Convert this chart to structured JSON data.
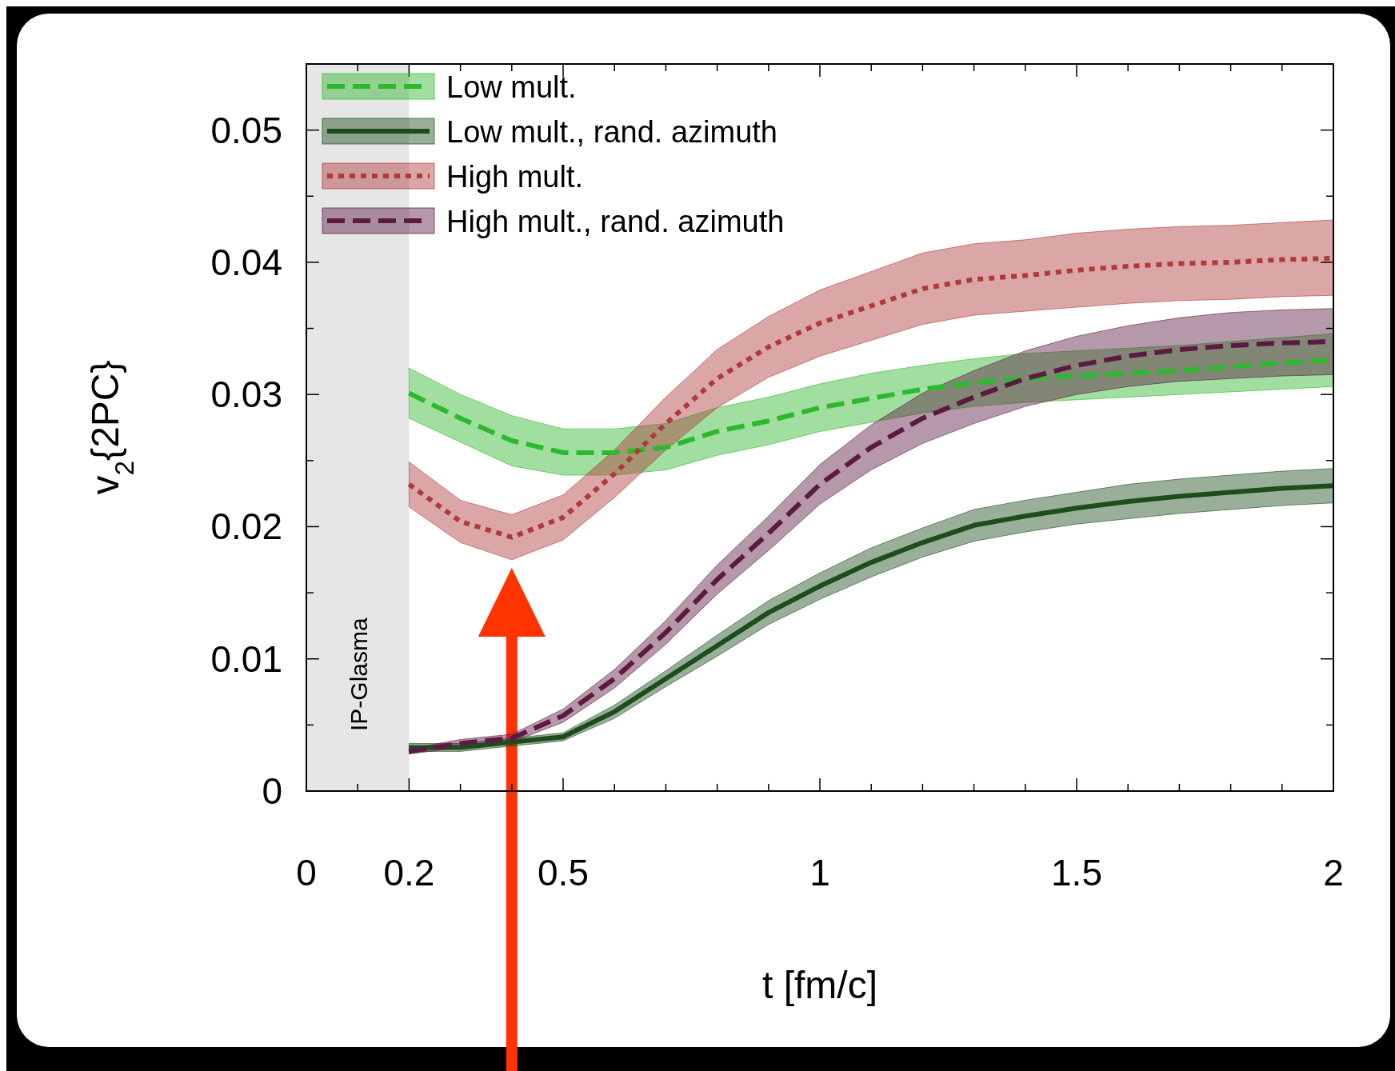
{
  "chart_data": {
    "type": "line",
    "xlabel": "t [fm/c]",
    "ylabel": "v$_{2}${2PC}",
    "x": [
      0.2,
      0.3,
      0.4,
      0.5,
      0.6,
      0.7,
      0.8,
      0.9,
      1.0,
      1.1,
      1.2,
      1.3,
      1.4,
      1.5,
      1.6,
      1.7,
      1.8,
      1.9,
      2.0
    ],
    "xlim": [
      0,
      2
    ],
    "ylim": [
      0,
      0.055
    ],
    "xticks": [
      0,
      {
        "value": 0.1,
        "label": null
      },
      0.2,
      {
        "value": 0.3,
        "label": null
      },
      {
        "value": 0.4,
        "label": null
      },
      0.5,
      {
        "value": 0.6,
        "label": null
      },
      {
        "value": 0.7,
        "label": null
      },
      {
        "value": 0.8,
        "label": null
      },
      {
        "value": 0.9,
        "label": null
      },
      1,
      {
        "value": 1.1,
        "label": null
      },
      {
        "value": 1.2,
        "label": null
      },
      {
        "value": 1.3,
        "label": null
      },
      {
        "value": 1.4,
        "label": null
      },
      1.5,
      {
        "value": 1.6,
        "label": null
      },
      {
        "value": 1.7,
        "label": null
      },
      {
        "value": 1.8,
        "label": null
      },
      {
        "value": 1.9,
        "label": null
      },
      2
    ],
    "yticks": [
      0,
      {
        "value": 0.005,
        "label": null
      },
      0.01,
      {
        "value": 0.015,
        "label": null
      },
      0.02,
      {
        "value": 0.025,
        "label": null
      },
      0.03,
      {
        "value": 0.035,
        "label": null
      },
      0.04,
      {
        "value": 0.045,
        "label": null
      },
      0.05
    ],
    "grid": false,
    "legend": "top left",
    "bands": [
      {
        "axis": "x",
        "from": 0,
        "to": 0.2,
        "label": "IP-Glasma",
        "color": "#e6e6e6"
      }
    ],
    "series": [
      {
        "name": "Low mult.",
        "color": "#2db82d",
        "line_style": "dashed",
        "values": [
          0.0301,
          0.0282,
          0.0265,
          0.0256,
          0.0256,
          0.026,
          0.0272,
          0.028,
          0.029,
          0.0297,
          0.0304,
          0.0309,
          0.0312,
          0.0314,
          0.0316,
          0.0318,
          0.0321,
          0.0324,
          0.0326
        ],
        "lower": [
          0.0282,
          0.0264,
          0.0246,
          0.0239,
          0.0239,
          0.0243,
          0.0254,
          0.0262,
          0.0272,
          0.0279,
          0.0286,
          0.0291,
          0.0294,
          0.0296,
          0.0298,
          0.03,
          0.0302,
          0.0304,
          0.0306
        ],
        "upper": [
          0.032,
          0.03,
          0.0284,
          0.0274,
          0.0274,
          0.0278,
          0.029,
          0.0298,
          0.0308,
          0.0316,
          0.0322,
          0.0327,
          0.0331,
          0.0333,
          0.0335,
          0.0337,
          0.034,
          0.0343,
          0.0346
        ]
      },
      {
        "name": "Low mult., rand. azimuth",
        "color": "#1d4d1d",
        "line_style": "solid",
        "values": [
          0.0033,
          0.0033,
          0.0037,
          0.0041,
          0.006,
          0.0085,
          0.011,
          0.0135,
          0.0155,
          0.0173,
          0.0188,
          0.0201,
          0.0208,
          0.0214,
          0.0219,
          0.0223,
          0.0226,
          0.0229,
          0.0231
        ],
        "lower": [
          0.003,
          0.003,
          0.0034,
          0.0038,
          0.0055,
          0.0079,
          0.0102,
          0.0126,
          0.0145,
          0.0162,
          0.0177,
          0.0189,
          0.0196,
          0.0202,
          0.0206,
          0.021,
          0.0213,
          0.0216,
          0.0218
        ],
        "upper": [
          0.0036,
          0.0036,
          0.004,
          0.0044,
          0.0065,
          0.0091,
          0.0118,
          0.0144,
          0.0165,
          0.0184,
          0.0199,
          0.0213,
          0.022,
          0.0226,
          0.0232,
          0.0236,
          0.0239,
          0.0242,
          0.0244
        ]
      },
      {
        "name": "High mult.",
        "color": "#b03a3a",
        "line_style": "dotted",
        "values": [
          0.0232,
          0.0204,
          0.0192,
          0.0207,
          0.024,
          0.0278,
          0.0312,
          0.0336,
          0.0354,
          0.0367,
          0.038,
          0.0387,
          0.039,
          0.0394,
          0.0397,
          0.0399,
          0.04,
          0.0402,
          0.0403
        ],
        "lower": [
          0.0215,
          0.0188,
          0.0175,
          0.019,
          0.0222,
          0.0258,
          0.029,
          0.0313,
          0.0329,
          0.0341,
          0.0353,
          0.036,
          0.0363,
          0.0366,
          0.0369,
          0.0371,
          0.0372,
          0.0374,
          0.0375
        ],
        "upper": [
          0.0249,
          0.022,
          0.0209,
          0.0224,
          0.0258,
          0.0298,
          0.0334,
          0.0359,
          0.0379,
          0.0393,
          0.0407,
          0.0414,
          0.0417,
          0.0422,
          0.0425,
          0.0427,
          0.0428,
          0.043,
          0.0432
        ]
      },
      {
        "name": "High mult., rand. azimuth",
        "color": "#5c1a40",
        "line_style": "dashed",
        "values": [
          0.003,
          0.0036,
          0.004,
          0.0057,
          0.0085,
          0.012,
          0.016,
          0.0195,
          0.0232,
          0.026,
          0.0282,
          0.0298,
          0.0312,
          0.0322,
          0.0329,
          0.0334,
          0.0337,
          0.0339,
          0.034
        ],
        "lower": [
          0.0028,
          0.0033,
          0.0037,
          0.0052,
          0.0078,
          0.0111,
          0.0149,
          0.0182,
          0.0217,
          0.0243,
          0.0263,
          0.0278,
          0.0291,
          0.03,
          0.0306,
          0.031,
          0.0312,
          0.0314,
          0.0315
        ],
        "upper": [
          0.0032,
          0.0039,
          0.0043,
          0.0062,
          0.0092,
          0.0129,
          0.0171,
          0.0208,
          0.0247,
          0.0277,
          0.0301,
          0.0318,
          0.0333,
          0.0344,
          0.0352,
          0.0358,
          0.0362,
          0.0364,
          0.0365
        ]
      }
    ]
  }
}
